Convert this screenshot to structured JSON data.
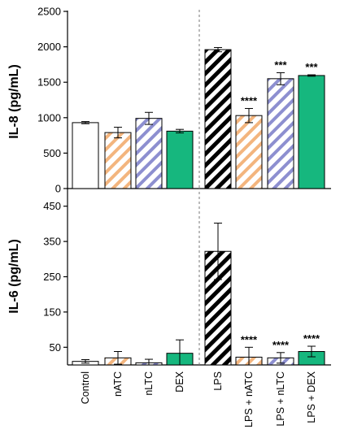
{
  "chart_data": [
    {
      "type": "bar",
      "ylabel": "IL-8 (pg/mL)",
      "ylim": [
        0,
        2500
      ],
      "yticks": [
        "0",
        "500",
        "1000",
        "1500",
        "2000",
        "2500"
      ],
      "categories": [
        "Control",
        "nATC",
        "nLTC",
        "DEX",
        "LPS",
        "LPS + nATC",
        "LPS + nLTC",
        "LPS + DEX"
      ],
      "values": [
        930,
        790,
        990,
        810,
        1960,
        1030,
        1550,
        1595
      ],
      "errors": [
        15,
        75,
        85,
        25,
        30,
        100,
        85,
        10
      ],
      "significance": [
        "",
        "",
        "",
        "",
        "",
        "****",
        "***",
        "***"
      ]
    },
    {
      "type": "bar",
      "ylabel": "IL-6 (pg/mL)",
      "ylim": [
        0,
        500
      ],
      "yticks": [
        "50",
        "150",
        "250",
        "350",
        "450"
      ],
      "categories": [
        "Control",
        "nATC",
        "nLTC",
        "DEX",
        "LPS",
        "LPS + nATC",
        "LPS + nLTC",
        "LPS + DEX"
      ],
      "values": [
        10,
        20,
        6,
        33,
        322,
        22,
        20,
        38
      ],
      "errors": [
        5,
        18,
        10,
        38,
        80,
        28,
        15,
        15
      ],
      "significance": [
        "",
        "",
        "",
        "",
        "",
        "****",
        "****",
        "****"
      ]
    }
  ],
  "series_styles": [
    {
      "fill": "#ffffff",
      "stripe": ""
    },
    {
      "fill": "#ffffff",
      "stripe": "#f3b57e"
    },
    {
      "fill": "#ffffff",
      "stripe": "#8d8fd0"
    },
    {
      "fill": "#16b77e",
      "stripe": ""
    },
    {
      "fill": "#ffffff",
      "stripe": "#000000"
    },
    {
      "fill": "#ffffff",
      "stripe": "#f3b57e"
    },
    {
      "fill": "#ffffff",
      "stripe": "#8d8fd0"
    },
    {
      "fill": "#16b77e",
      "stripe": ""
    }
  ]
}
